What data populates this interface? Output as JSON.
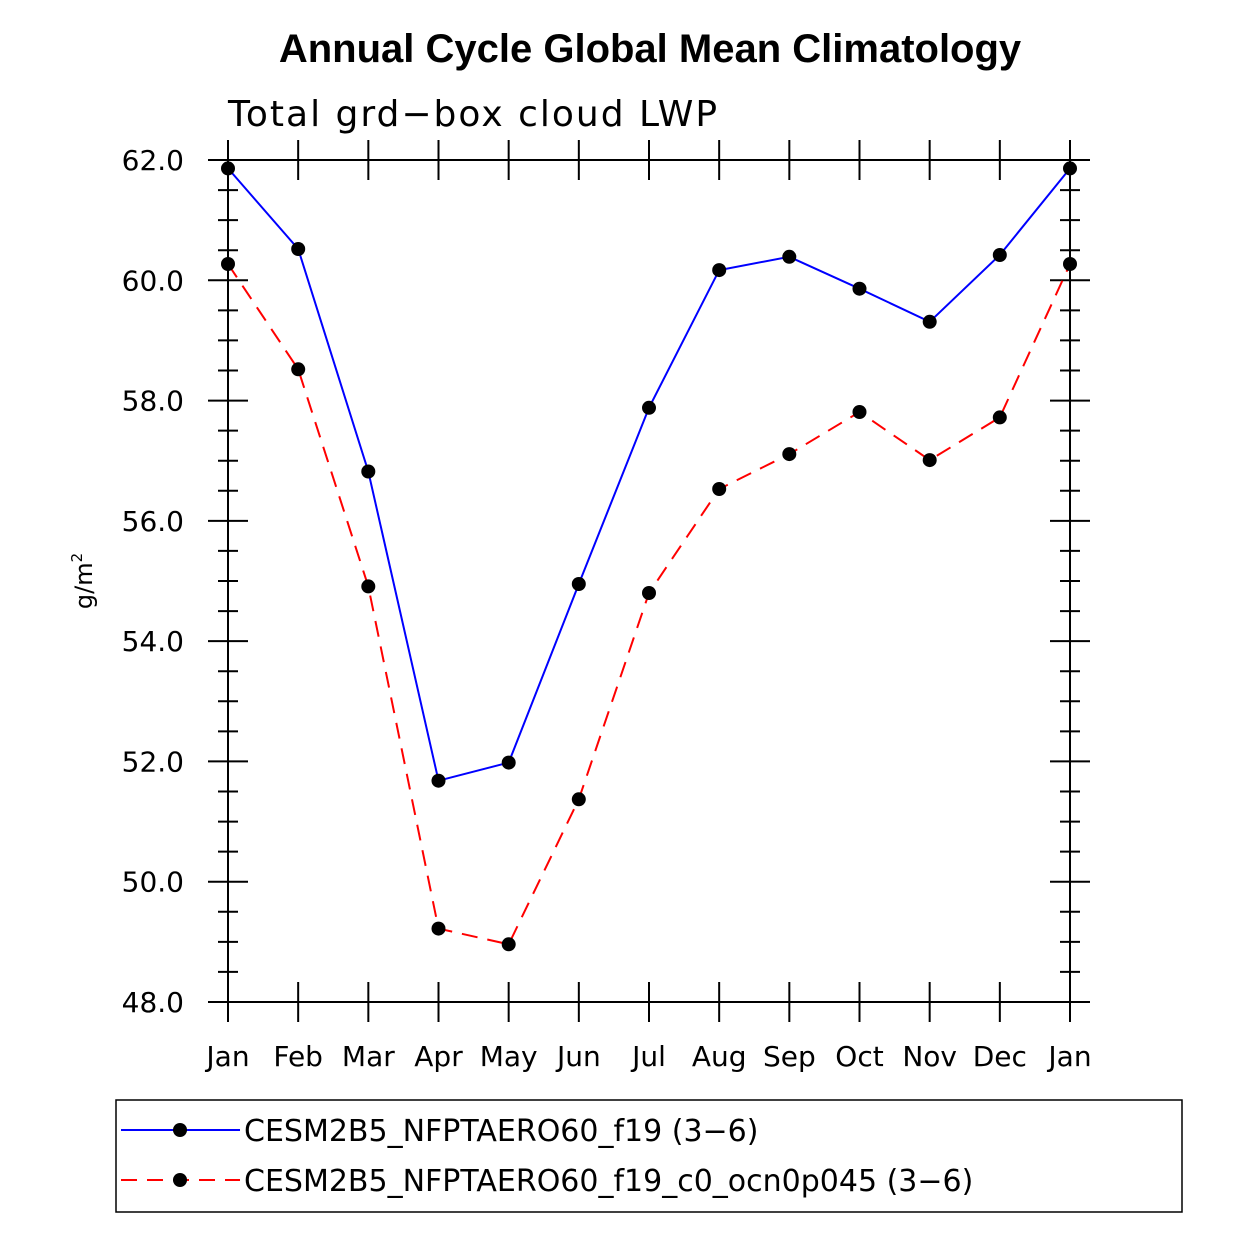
{
  "chart_data": {
    "type": "line",
    "title": "Annual Cycle Global Mean Climatology",
    "subtitle": "Total grd−box cloud LWP",
    "xlabel": "",
    "ylabel": "g/m",
    "ylabel_superscript": "2",
    "categories": [
      "Jan",
      "Feb",
      "Mar",
      "Apr",
      "May",
      "Jun",
      "Jul",
      "Aug",
      "Sep",
      "Oct",
      "Nov",
      "Dec",
      "Jan"
    ],
    "ylim": [
      48.0,
      62.0
    ],
    "y_ticks": [
      48.0,
      50.0,
      52.0,
      54.0,
      56.0,
      58.0,
      60.0,
      62.0
    ],
    "y_tick_labels": [
      "48.0",
      "50.0",
      "52.0",
      "54.0",
      "56.0",
      "58.0",
      "60.0",
      "62.0"
    ],
    "y_minor_step": 0.5,
    "legend_position": "bottom",
    "series": [
      {
        "name": "CESM2B5_NFPTAERO60_f19 (3−6)",
        "color": "#0000ff",
        "dash": "solid",
        "values": [
          61.86,
          60.52,
          56.82,
          51.68,
          51.98,
          54.95,
          57.88,
          60.17,
          60.39,
          59.86,
          59.31,
          60.42,
          61.86
        ]
      },
      {
        "name": "CESM2B5_NFPTAERO60_f19_c0_ocn0p045 (3−6)",
        "color": "#ff0000",
        "dash": "dashed",
        "values": [
          60.27,
          58.52,
          54.91,
          49.22,
          48.96,
          51.37,
          54.8,
          56.53,
          57.11,
          57.81,
          57.01,
          57.72,
          60.27
        ]
      }
    ]
  }
}
